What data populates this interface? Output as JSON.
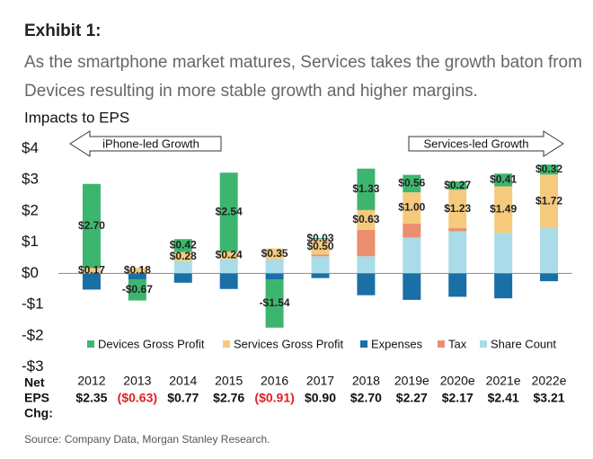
{
  "exhibit": "Exhibit 1:",
  "subtitle": "As the smartphone market matures, Services takes the growth baton from Devices resulting in more stable growth and higher margins.",
  "source": "Source: Company Data, Morgan Stanley Research.",
  "chart_data": {
    "type": "stacked_bar",
    "title": "Impacts to EPS",
    "annotations": [
      "iPhone-led Growth",
      "Services-led Growth"
    ],
    "categories": [
      "2012",
      "2013",
      "2014",
      "2015",
      "2016",
      "2017",
      "2018",
      "2019e",
      "2020e",
      "2021e",
      "2022e"
    ],
    "ylim": [
      -3,
      4
    ],
    "yticks": [
      {
        "value": -3,
        "label": "-$3"
      },
      {
        "value": -2,
        "label": "-$2"
      },
      {
        "value": -1,
        "label": "-$1"
      },
      {
        "value": 0,
        "label": "$0"
      },
      {
        "value": 1,
        "label": "$1"
      },
      {
        "value": 2,
        "label": "$2"
      },
      {
        "value": 3,
        "label": "$3"
      },
      {
        "value": 4,
        "label": "$4"
      }
    ],
    "series": [
      {
        "name": "Devices Gross Profit",
        "color": "#3cb66e",
        "values": [
          2.7,
          -0.67,
          0.42,
          2.54,
          -1.54,
          0.03,
          1.33,
          0.56,
          0.27,
          0.41,
          0.32
        ],
        "value_labels": [
          "$2.70",
          "-$0.67",
          "$0.42",
          "$2.54",
          "-$1.54",
          "$0.03",
          "$1.33",
          "$0.56",
          "$0.27",
          "$0.41",
          "$0.32"
        ]
      },
      {
        "name": "Services Gross Profit",
        "color": "#f6ca7d",
        "values": [
          0.17,
          0.18,
          0.28,
          0.24,
          0.35,
          0.5,
          0.63,
          1.0,
          1.23,
          1.49,
          1.72
        ],
        "value_labels": [
          "$0.17",
          "$0.18",
          "$0.28",
          "$0.24",
          "$0.35",
          "$0.50",
          "$0.63",
          "$1.00",
          "$1.23",
          "$1.49",
          "$1.72"
        ]
      },
      {
        "name": "Expenses",
        "color": "#1a6fa6",
        "values": [
          -0.52,
          -0.2,
          -0.3,
          -0.5,
          -0.2,
          -0.15,
          -0.7,
          -0.85,
          -0.75,
          -0.8,
          -0.25
        ]
      },
      {
        "name": "Tax",
        "color": "#ec8f6f",
        "values": [
          0,
          0,
          0,
          0,
          0,
          0.05,
          0.85,
          0.45,
          0.1,
          0,
          0
        ]
      },
      {
        "name": "Share Count",
        "color": "#a9dce8",
        "values": [
          0,
          0,
          0.4,
          0.45,
          0.45,
          0.55,
          0.55,
          1.15,
          1.35,
          1.3,
          1.45
        ]
      }
    ],
    "net_eps_heading": [
      "Net",
      "EPS",
      "Chg:"
    ],
    "net_eps_labels": [
      "$2.35",
      "($0.63)",
      "$0.77",
      "$2.76",
      "($0.91)",
      "$0.90",
      "$2.70",
      "$2.27",
      "$2.17",
      "$2.41",
      "$3.21"
    ]
  }
}
